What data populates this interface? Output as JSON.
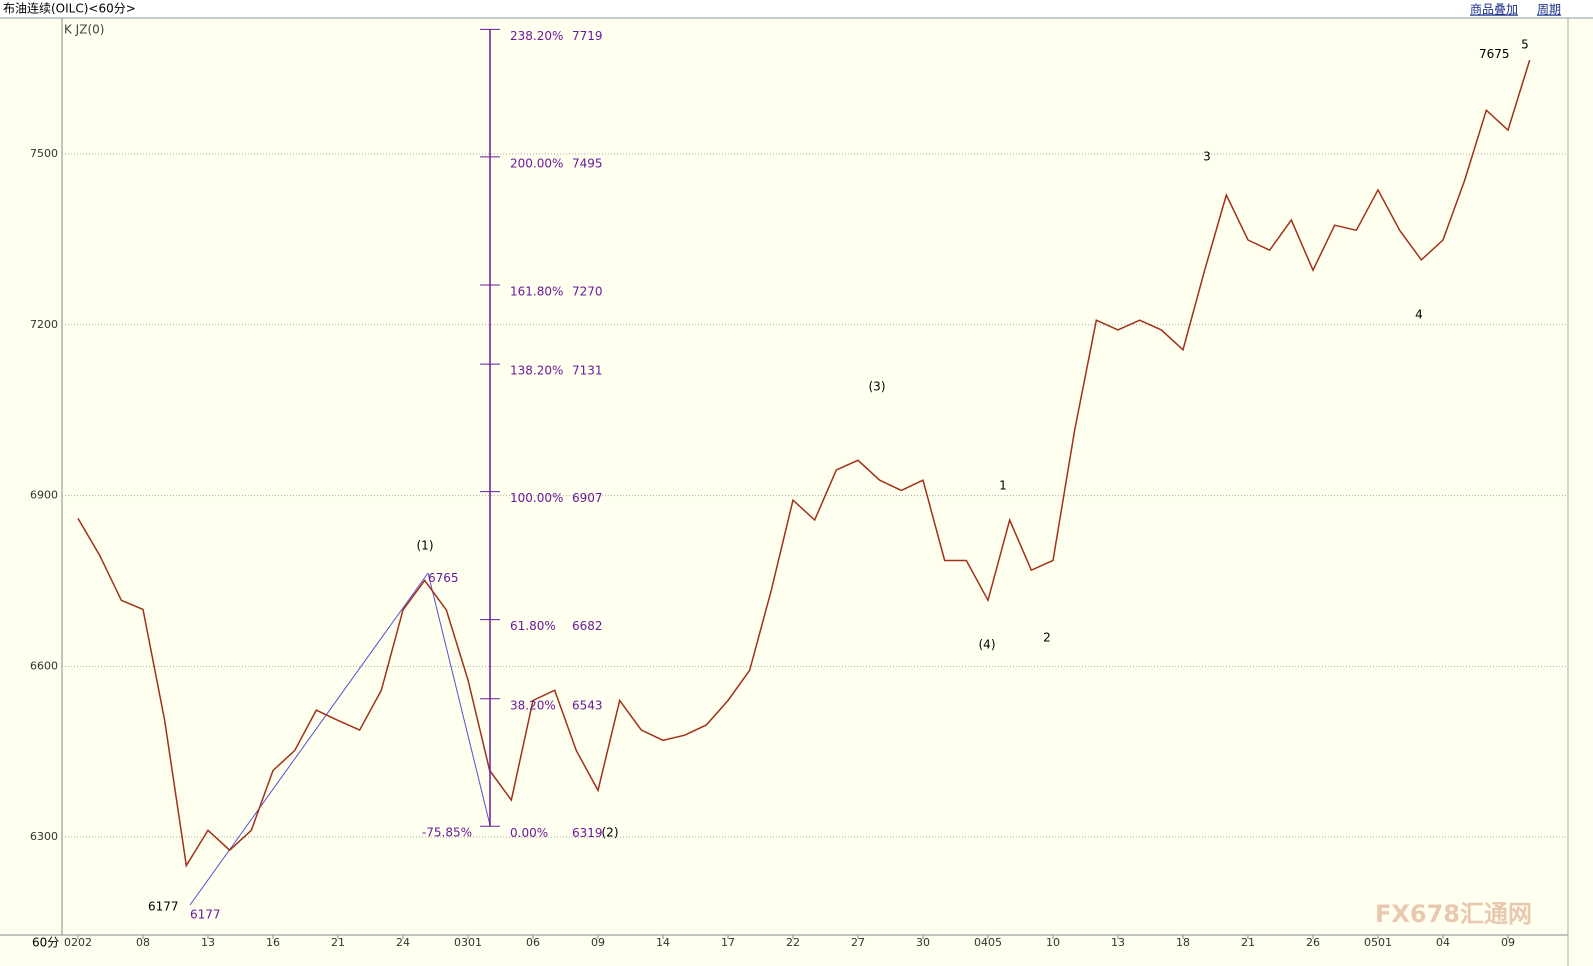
{
  "header": {
    "title": "布油连续(OILC)<60分>",
    "buttons": [
      "商品叠加",
      "周期"
    ],
    "indicator": "K JZ(0)",
    "period": "60分",
    "watermark": "FX678汇通网"
  },
  "chart_data": {
    "type": "line",
    "categories": [
      "0202",
      null,
      null,
      "08",
      null,
      null,
      "13",
      null,
      null,
      "16",
      null,
      null,
      "21",
      null,
      null,
      "24",
      null,
      null,
      "0301",
      null,
      null,
      "06",
      null,
      null,
      "09",
      null,
      null,
      "14",
      null,
      null,
      "17",
      null,
      null,
      "22",
      null,
      null,
      "27",
      null,
      null,
      "30",
      null,
      null,
      "0405",
      null,
      null,
      "10",
      null,
      null,
      "13",
      null,
      null,
      "18",
      null,
      null,
      "21",
      null,
      null,
      "26",
      null,
      null,
      "0501",
      null,
      null,
      "04",
      null,
      null,
      "09",
      null
    ],
    "series": [
      {
        "name": "OILC",
        "color": "#a0301a",
        "values": [
          6860,
          6795,
          6716,
          6700,
          6505,
          6250,
          6312,
          6277,
          6312,
          6417,
          6452,
          6523,
          6505,
          6488,
          6558,
          6699,
          6751,
          6699,
          6576,
          6417,
          6365,
          6540,
          6558,
          6452,
          6382,
          6540,
          6488,
          6470,
          6479,
          6497,
          6540,
          6593,
          6734,
          6892,
          6857,
          6945,
          6962,
          6927,
          6909,
          6927,
          6786,
          6786,
          6716,
          6857,
          6769,
          6786,
          7015,
          7208,
          7191,
          7208,
          7191,
          7156,
          7296,
          7428,
          7349,
          7331,
          7384,
          7296,
          7375,
          7366,
          7437,
          7366,
          7314,
          7349,
          7454,
          7577,
          7542,
          7665
        ]
      }
    ],
    "ylim": [
      6128,
      7739
    ],
    "yticks": [
      6300,
      6600,
      6900,
      7200,
      7500
    ],
    "grid": true,
    "fib_levels": [
      {
        "pct": "238.20%",
        "price": 7719
      },
      {
        "pct": "200.00%",
        "price": 7495
      },
      {
        "pct": "161.80%",
        "price": 7270
      },
      {
        "pct": "138.20%",
        "price": 7131
      },
      {
        "pct": "100.00%",
        "price": 6907
      },
      {
        "pct": "61.80%",
        "price": 6682
      },
      {
        "pct": "38.20%",
        "price": 6543
      },
      {
        "pct": "0.00%",
        "price": 6319
      }
    ],
    "fib_color": "#6a1b9a",
    "price_labels": [
      6177,
      6177,
      6765,
      7675
    ],
    "annotations": [
      "(1)",
      "(2)",
      "(3)",
      "(4)",
      "1",
      "2",
      "3",
      "4",
      "5",
      "-75.85%"
    ]
  }
}
